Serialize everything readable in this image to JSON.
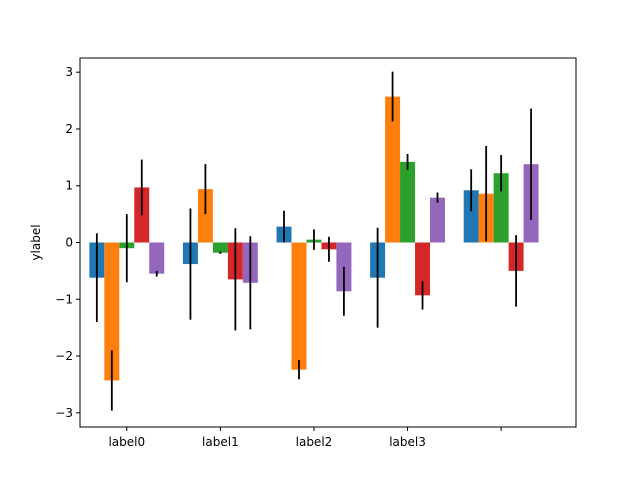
{
  "chart_data": {
    "type": "bar",
    "title": "",
    "xlabel": "",
    "ylabel": "ylabel",
    "ylim": [
      -3.25,
      3.25
    ],
    "yticks": [
      -3,
      -2,
      -1,
      0,
      1,
      2,
      3
    ],
    "categories": [
      "label0",
      "label1",
      "label2",
      "label3",
      ""
    ],
    "grid": false,
    "legend": "none",
    "series": [
      {
        "color": "#1f77b4",
        "values": [
          -0.62,
          -0.38,
          0.28,
          -0.62,
          0.92
        ],
        "errors": [
          0.78,
          0.98,
          0.28,
          0.88,
          0.37
        ]
      },
      {
        "color": "#ff7f0e",
        "values": [
          -2.43,
          0.94,
          -2.24,
          2.57,
          0.86
        ],
        "errors": [
          0.53,
          0.44,
          0.17,
          0.44,
          0.84
        ]
      },
      {
        "color": "#2ca02c",
        "values": [
          -0.1,
          -0.18,
          0.05,
          1.42,
          1.22
        ],
        "errors": [
          0.6,
          0.02,
          0.18,
          0.14,
          0.32
        ]
      },
      {
        "color": "#d62728",
        "values": [
          0.97,
          -0.65,
          -0.12,
          -0.93,
          -0.5
        ],
        "errors": [
          0.49,
          0.9,
          0.22,
          0.25,
          0.63
        ]
      },
      {
        "color": "#9467bd",
        "values": [
          -0.55,
          -0.71,
          -0.86,
          0.79,
          1.38
        ],
        "errors": [
          0.05,
          0.82,
          0.43,
          0.09,
          0.98
        ]
      }
    ]
  }
}
